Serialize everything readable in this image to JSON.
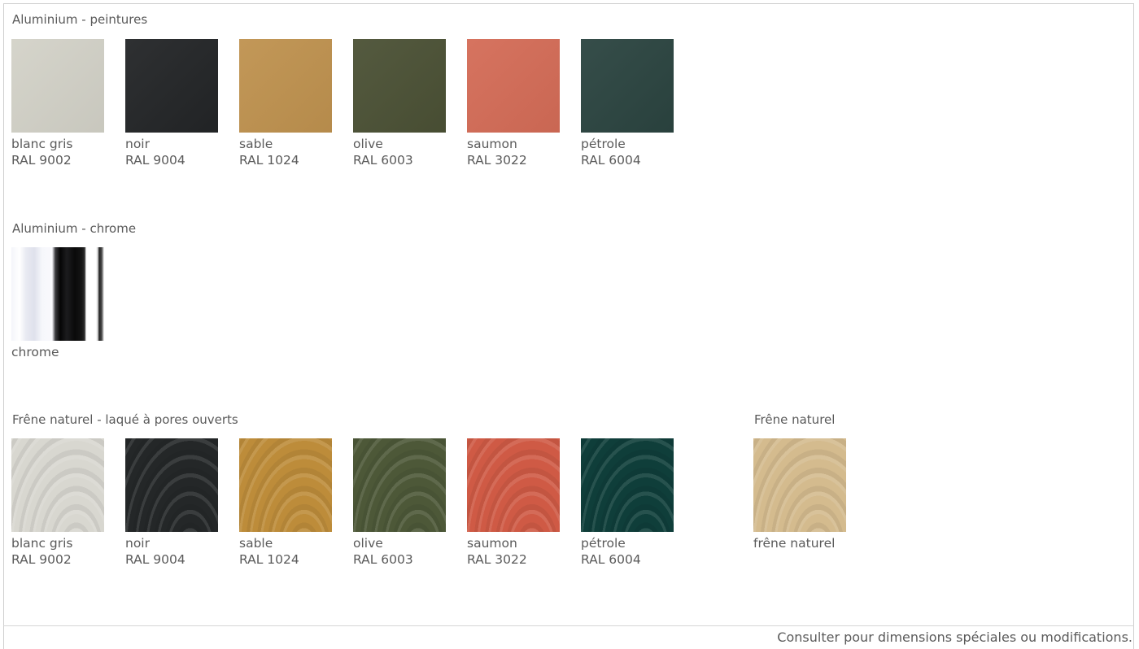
{
  "sections": {
    "paint": {
      "title": "Aluminium - peintures",
      "items": [
        {
          "name": "blanc gris",
          "code": "RAL 9002",
          "color": "#d3d2c8"
        },
        {
          "name": "noir",
          "code": "RAL 9004",
          "color": "#232527"
        },
        {
          "name": "sable",
          "code": "RAL 1024",
          "color": "#bf924f"
        },
        {
          "name": "olive",
          "code": "RAL 6003",
          "color": "#4b5135"
        },
        {
          "name": "saumon",
          "code": "RAL 3022",
          "color": "#d46c57"
        },
        {
          "name": "pétrole",
          "code": "RAL 6004",
          "color": "#2b4440"
        }
      ]
    },
    "chrome": {
      "title": "Aluminium - chrome",
      "items": [
        {
          "name": "chrome"
        }
      ]
    },
    "ash_lacquered": {
      "title": "Frêne naturel - laqué à pores ouverts",
      "items": [
        {
          "name": "blanc gris",
          "code": "RAL 9002",
          "color": "#d8d7d0"
        },
        {
          "name": "noir",
          "code": "RAL 9004",
          "color": "#242728"
        },
        {
          "name": "sable",
          "code": "RAL 1024",
          "color": "#bd8c3a"
        },
        {
          "name": "olive",
          "code": "RAL 6003",
          "color": "#4d5838"
        },
        {
          "name": "saumon",
          "code": "RAL 3022",
          "color": "#cf5a45"
        },
        {
          "name": "pétrole",
          "code": "RAL 6004",
          "color": "#0f3e3a"
        }
      ]
    },
    "ash_natural": {
      "title": "Frêne naturel",
      "items": [
        {
          "name": "frêne naturel",
          "color": "#d4bb8e"
        }
      ]
    }
  },
  "footer": {
    "note": "Consulter pour dimensions spéciales ou modifications."
  }
}
